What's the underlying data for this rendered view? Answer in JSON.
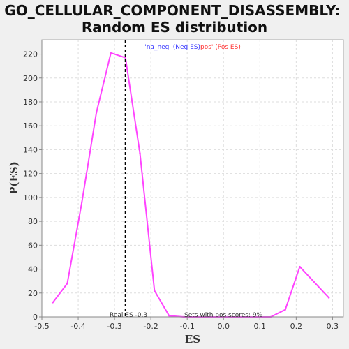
{
  "chart_data": {
    "type": "line",
    "title_line1": "GO_CELLULAR_COMPONENT_DISASSEMBLY:",
    "title_line2": "Random ES distribution",
    "xlabel": "ES",
    "ylabel": "P(ES)",
    "xlim": [
      -0.5,
      0.33
    ],
    "ylim": [
      0,
      232
    ],
    "x_ticks": [
      -0.5,
      -0.4,
      -0.3,
      -0.2,
      -0.1,
      0.0,
      0.1,
      0.2,
      0.3
    ],
    "x_tick_labels": [
      "-0.5",
      "-0.4",
      "-0.3",
      "-0.2",
      "-0.1",
      "0.0",
      "0.1",
      "0.2",
      "0.3"
    ],
    "y_ticks": [
      0,
      20,
      40,
      60,
      80,
      100,
      120,
      140,
      160,
      180,
      200,
      220
    ],
    "y_tick_labels": [
      "0",
      "20",
      "40",
      "60",
      "80",
      "100",
      "120",
      "140",
      "160",
      "180",
      "200",
      "220"
    ],
    "grid": true,
    "series": [
      {
        "color": "#ff44ff",
        "x": [
          -0.47,
          -0.43,
          -0.39,
          -0.35,
          -0.31,
          -0.27,
          -0.23,
          -0.19,
          -0.15,
          -0.11,
          -0.07,
          -0.03,
          0.01,
          0.05,
          0.09,
          0.13,
          0.17,
          0.21,
          0.25,
          0.29
        ],
        "y": [
          12,
          28,
          96,
          171,
          221,
          217,
          137,
          22,
          1,
          0,
          0,
          0,
          0,
          0,
          0,
          0,
          6,
          42,
          29,
          16
        ]
      }
    ],
    "real_es": -0.27,
    "real_es_label": "Real ES -0.3",
    "pos_scores_label": "Sets with pos scores: 9%",
    "legend_neg": "'na_neg' (Neg ES)",
    "legend_pos": "pos' (Pos ES)",
    "colors": {
      "background": "#f0f0f0",
      "plot_background": "#ffffff",
      "series": "#ff44ff",
      "grid": "#dddddd",
      "real_es_line": "#000000"
    }
  }
}
